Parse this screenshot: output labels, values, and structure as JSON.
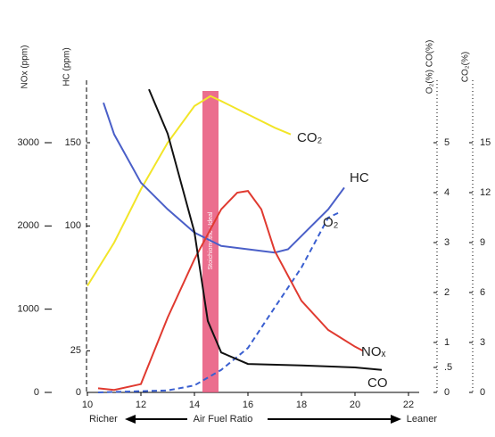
{
  "chart_data": {
    "type": "line",
    "x_label": "Air Fuel Ratio",
    "x_left_label": "Richer",
    "x_right_label": "Leaner",
    "xlim": [
      10,
      22
    ],
    "xticks": [
      10,
      12,
      14,
      16,
      18,
      20,
      22
    ],
    "band": {
      "label": "Stoichiometric : Ideal",
      "x": [
        14.3,
        14.9
      ],
      "color": "#e8557a"
    },
    "axes": [
      {
        "label": "NOx (ppm)",
        "ylim": [
          0,
          3750
        ],
        "yticks": [
          0,
          1000,
          2000,
          3000
        ],
        "style": "ticks"
      },
      {
        "label": "HC (ppm)",
        "ylim": [
          0,
          187.5
        ],
        "yticks": [
          0,
          25,
          100,
          150
        ],
        "style": "dashed"
      },
      {
        "label": "O₂(%) CO(%)",
        "ylim": [
          0,
          6.25
        ],
        "yticks": [
          0,
          {
            "value": 0.5,
            "label": ".5"
          },
          1,
          2,
          3,
          4,
          5
        ],
        "style": "dotted"
      },
      {
        "label": "CO₂(%)",
        "ylim": [
          0,
          18.75
        ],
        "yticks": [
          0,
          3,
          6,
          9,
          12,
          15
        ],
        "style": "dotted"
      }
    ],
    "series": [
      {
        "name": "CO₂",
        "color": "#f2e528",
        "axis": 3,
        "dash": false,
        "x": [
          10,
          11,
          12,
          13,
          14,
          14.6,
          15,
          16,
          17,
          17.6
        ],
        "values": [
          6.4,
          9,
          12.2,
          15,
          17.2,
          17.8,
          17.5,
          16.7,
          15.9,
          15.5
        ]
      },
      {
        "name": "HC",
        "color": "#4a5fc8",
        "axis": 1,
        "dash": false,
        "x": [
          10.6,
          11,
          12,
          13,
          14,
          15,
          16,
          17,
          17.5,
          18,
          19,
          19.6
        ],
        "values": [
          174,
          155,
          126,
          110,
          96,
          88,
          86,
          84,
          86,
          94,
          110,
          123
        ]
      },
      {
        "name": "O₂",
        "color": "#3a5fd0",
        "axis": 2,
        "dash": true,
        "x": [
          10.4,
          13,
          14,
          15,
          16,
          17,
          18,
          18.6,
          19,
          19.4
        ],
        "values": [
          0,
          0.04,
          0.14,
          0.45,
          0.89,
          1.7,
          2.5,
          3.1,
          3.5,
          3.6
        ]
      },
      {
        "name": "NOₓ",
        "color": "#e03a30",
        "axis": 0,
        "dash": false,
        "x": [
          10.4,
          11,
          12,
          13,
          14,
          15,
          15.6,
          16,
          16.5,
          17,
          18,
          19,
          20,
          20.3
        ],
        "values": [
          50,
          30,
          100,
          900,
          1600,
          2200,
          2400,
          2420,
          2200,
          1700,
          1100,
          750,
          550,
          500
        ]
      },
      {
        "name": "CO",
        "color": "#111111",
        "axis": 2,
        "dash": false,
        "x": [
          12.3,
          13,
          14,
          14.5,
          15,
          16,
          18,
          20,
          21
        ],
        "values": [
          6.07,
          5.18,
          3.21,
          1.43,
          0.8,
          0.57,
          0.54,
          0.5,
          0.45
        ]
      }
    ]
  }
}
